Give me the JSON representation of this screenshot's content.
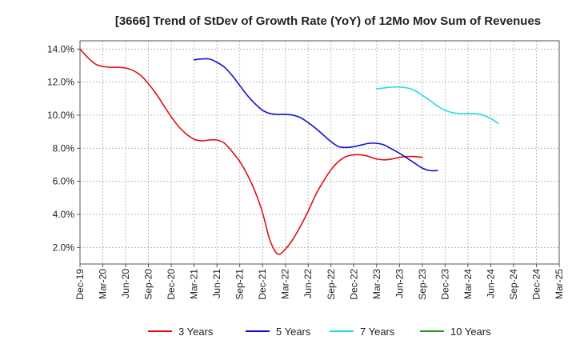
{
  "chart_data": {
    "type": "line",
    "title": "[3666]  Trend of StDev of Growth Rate (YoY) of 12Mo Mov Sum of Revenues",
    "xlabel": "",
    "ylabel": "",
    "ylim": [
      1.0,
      14.5
    ],
    "yticks": [
      2.0,
      4.0,
      6.0,
      8.0,
      10.0,
      12.0,
      14.0
    ],
    "ytick_labels": [
      "2.0%",
      "4.0%",
      "6.0%",
      "8.0%",
      "10.0%",
      "12.0%",
      "14.0%"
    ],
    "x_tick_labels": [
      "Dec-19",
      "Mar-20",
      "Jun-20",
      "Sep-20",
      "Dec-20",
      "Mar-21",
      "Jun-21",
      "Sep-21",
      "Dec-21",
      "Mar-22",
      "Jun-22",
      "Sep-22",
      "Dec-22",
      "Mar-23",
      "Jun-23",
      "Sep-23",
      "Dec-23",
      "Mar-24",
      "Jun-24",
      "Sep-24",
      "Dec-24",
      "Mar-25"
    ],
    "grid": true,
    "legend_position": "bottom",
    "series": [
      {
        "name": "3 Years",
        "color": "#dd1111",
        "start_index": 0,
        "values": [
          14.0,
          13.5,
          13.1,
          12.95,
          12.9,
          12.9,
          12.85,
          12.7,
          12.4,
          11.9,
          11.3,
          10.6,
          9.9,
          9.3,
          8.85,
          8.55,
          8.45,
          8.5,
          8.5,
          8.3,
          7.8,
          7.2,
          6.4,
          5.4,
          4.1,
          2.4,
          1.6,
          1.9,
          2.5,
          3.3,
          4.2,
          5.2,
          6.0,
          6.7,
          7.2,
          7.5,
          7.6,
          7.6,
          7.5,
          7.35,
          7.3,
          7.35,
          7.45,
          7.5,
          7.5,
          7.45
        ]
      },
      {
        "name": "5 Years",
        "color": "#1111cc",
        "start_index": 15,
        "values": [
          13.35,
          13.4,
          13.4,
          13.2,
          12.9,
          12.4,
          11.8,
          11.2,
          10.7,
          10.3,
          10.1,
          10.05,
          10.05,
          10.0,
          9.85,
          9.55,
          9.2,
          8.8,
          8.4,
          8.1,
          8.05,
          8.1,
          8.2,
          8.3,
          8.3,
          8.2,
          7.95,
          7.7,
          7.4,
          7.1,
          6.8,
          6.65,
          6.65
        ]
      },
      {
        "name": "7 Years",
        "color": "#22dddd",
        "start_index": 39,
        "values": [
          11.6,
          11.65,
          11.7,
          11.7,
          11.65,
          11.5,
          11.2,
          10.9,
          10.55,
          10.3,
          10.15,
          10.1,
          10.1,
          10.1,
          10.0,
          9.8,
          9.5
        ]
      },
      {
        "name": "10 Years",
        "color": "#229922",
        "start_index": 0,
        "values": []
      }
    ]
  }
}
